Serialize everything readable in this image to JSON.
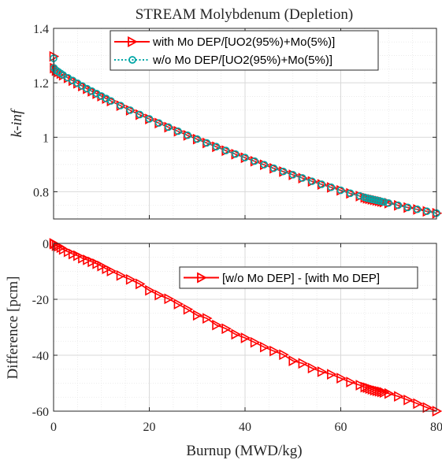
{
  "chart_data": [
    {
      "type": "line",
      "title": "STREAM Molybdenum (Depletion)",
      "xlabel": "",
      "ylabel": "k-inf",
      "xlim": [
        0,
        80
      ],
      "ylim": [
        0.7,
        1.4
      ],
      "xticks": [
        0,
        20,
        40,
        60,
        80
      ],
      "yticks": [
        0.8,
        1,
        1.2,
        1.4
      ],
      "ytick_labels": [
        "0.8",
        "1",
        "1.2",
        "1.4"
      ],
      "grid": true,
      "legend_position": "top-center",
      "x": [
        0,
        0.1,
        0.5,
        1,
        1.5,
        2,
        3,
        4,
        5,
        6,
        7,
        8,
        9,
        10,
        11,
        12,
        14,
        16,
        18,
        20,
        22,
        24,
        26,
        28,
        30,
        32,
        34,
        36,
        38,
        40,
        42,
        44,
        46,
        48,
        50,
        52,
        54,
        56,
        58,
        60,
        62,
        64,
        65,
        65.5,
        66,
        66.5,
        67,
        67.5,
        68,
        68.5,
        69,
        70,
        72,
        74,
        76,
        78,
        80
      ],
      "series": [
        {
          "name": "with Mo DEP/[UO2(95%)+Mo(5%)]",
          "color": "#ff0000",
          "marker": "triangle-right",
          "line": "solid",
          "values": [
            1.2969,
            1.254,
            1.245,
            1.24,
            1.234,
            1.228,
            1.218,
            1.208,
            1.198,
            1.188,
            1.178,
            1.169,
            1.16,
            1.151,
            1.142,
            1.133,
            1.116,
            1.099,
            1.083,
            1.067,
            1.052,
            1.037,
            1.022,
            1.007,
            0.993,
            0.979,
            0.965,
            0.951,
            0.938,
            0.925,
            0.912,
            0.899,
            0.886,
            0.874,
            0.862,
            0.85,
            0.838,
            0.827,
            0.816,
            0.805,
            0.794,
            0.784,
            0.779,
            0.776,
            0.774,
            0.772,
            0.77,
            0.768,
            0.766,
            0.764,
            0.762,
            0.758,
            0.75,
            0.742,
            0.735,
            0.728,
            0.721
          ]
        },
        {
          "name": "w/o Mo DEP/[UO2(95%)+Mo(5%)]",
          "color": "#00a6a6",
          "marker": "circle",
          "line": "dotted",
          "values": [
            1.29,
            1.2545,
            1.2455,
            1.2405,
            1.2345,
            1.2285,
            1.2185,
            1.2085,
            1.1985,
            1.1885,
            1.1785,
            1.1695,
            1.1605,
            1.1515,
            1.1425,
            1.1335,
            1.1165,
            1.0995,
            1.0835,
            1.0675,
            1.0525,
            1.0375,
            1.0225,
            1.0075,
            0.9935,
            0.9795,
            0.9655,
            0.9515,
            0.9385,
            0.9255,
            0.9125,
            0.8995,
            0.8865,
            0.8745,
            0.8625,
            0.8505,
            0.8385,
            0.8275,
            0.8165,
            0.8055,
            0.7945,
            0.7845,
            0.7795,
            0.7765,
            0.7745,
            0.7725,
            0.7705,
            0.7685,
            0.7665,
            0.7645,
            0.7625,
            0.7585,
            0.7505,
            0.7425,
            0.7355,
            0.7285,
            0.7215
          ]
        }
      ]
    },
    {
      "type": "line",
      "title": "",
      "xlabel": "Burnup (MWD/kg)",
      "ylabel": "Difference [pcm]",
      "xlim": [
        0,
        80
      ],
      "ylim": [
        -60,
        0
      ],
      "xticks": [
        0,
        20,
        40,
        60,
        80
      ],
      "yticks": [
        0,
        -20,
        -40,
        -60
      ],
      "grid": true,
      "legend_position": "center-right",
      "x": [
        0,
        0.1,
        0.5,
        1,
        1.5,
        2,
        3,
        4,
        5,
        6,
        7,
        8,
        9,
        10,
        11,
        12,
        14,
        16,
        18,
        20,
        22,
        24,
        26,
        28,
        30,
        32,
        34,
        36,
        38,
        40,
        42,
        44,
        46,
        48,
        50,
        52,
        54,
        56,
        58,
        60,
        62,
        64,
        65,
        65.5,
        66,
        66.5,
        67,
        67.5,
        68,
        68.5,
        69,
        70,
        72,
        74,
        76,
        78,
        80
      ],
      "series": [
        {
          "name": "[w/o Mo DEP] - [with Mo DEP]",
          "color": "#ff0000",
          "marker": "triangle-right",
          "line": "solid",
          "values": [
            0,
            -0.2,
            -0.8,
            -1.0,
            -1.5,
            -2.2,
            -3.0,
            -3.8,
            -4.4,
            -5.3,
            -5.9,
            -6.6,
            -7.3,
            -8.1,
            -9.1,
            -9.9,
            -11.5,
            -12.9,
            -14.5,
            -16.8,
            -18.5,
            -19.8,
            -21.7,
            -23.6,
            -25.7,
            -26.8,
            -29.2,
            -30.5,
            -32.5,
            -33.8,
            -35.4,
            -37.1,
            -38.5,
            -39.8,
            -42.0,
            -42.9,
            -44.6,
            -45.9,
            -46.8,
            -48.2,
            -49.6,
            -50.7,
            -51.4,
            -51.6,
            -51.9,
            -52.2,
            -52.5,
            -52.7,
            -52.9,
            -53.1,
            -53.3,
            -53.7,
            -54.7,
            -56.0,
            -57.3,
            -58.7,
            -60.0
          ]
        }
      ]
    }
  ]
}
